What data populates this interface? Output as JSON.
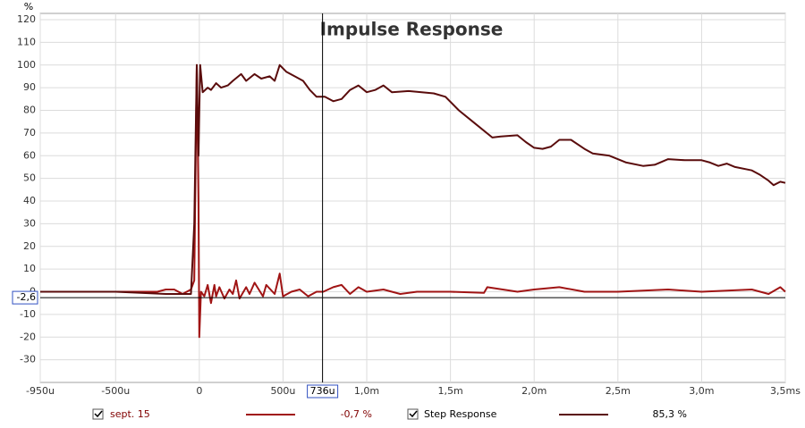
{
  "chart_data": {
    "type": "line",
    "title": "Impulse Response",
    "y_label": "%",
    "xlim": [
      -0.95,
      3.5
    ],
    "ylim": [
      -40,
      120
    ],
    "xticks": [
      {
        "value": -0.95,
        "label": "-950u"
      },
      {
        "value": -0.5,
        "label": "-500u"
      },
      0,
      {
        "value": 0.5,
        "label": "500u"
      },
      {
        "value": 1.0,
        "label": "1,0m"
      },
      {
        "value": 1.5,
        "label": "1,5m"
      },
      {
        "value": 2.0,
        "label": "2,0m"
      },
      {
        "value": 2.5,
        "label": "2,5m"
      },
      {
        "value": 3.0,
        "label": "3,0m"
      },
      {
        "value": 3.5,
        "label": "3,5ms"
      }
    ],
    "yticks": [
      -30,
      -20,
      -10,
      0,
      10,
      20,
      30,
      40,
      50,
      60,
      70,
      80,
      90,
      100,
      110,
      120
    ],
    "grid": true,
    "cursor": {
      "x": {
        "value": 0.736,
        "label": "736u"
      },
      "y": {
        "value": -2.6,
        "label": "-2,6"
      }
    },
    "series": [
      {
        "name": "sept. 15",
        "color": "#a01414",
        "readout": "-0,7 %",
        "x": [
          -0.95,
          -0.5,
          -0.25,
          -0.2,
          -0.15,
          -0.1,
          -0.05,
          -0.03,
          -0.015,
          -0.005,
          0.0,
          0.01,
          0.03,
          0.05,
          0.07,
          0.09,
          0.1,
          0.12,
          0.15,
          0.18,
          0.2,
          0.22,
          0.24,
          0.28,
          0.3,
          0.33,
          0.38,
          0.4,
          0.45,
          0.48,
          0.5,
          0.55,
          0.6,
          0.65,
          0.7,
          0.74,
          0.8,
          0.85,
          0.9,
          0.95,
          1.0,
          1.1,
          1.2,
          1.3,
          1.5,
          1.7,
          1.72,
          1.9,
          2.0,
          2.15,
          2.3,
          2.5,
          2.8,
          3.0,
          3.3,
          3.4,
          3.47,
          3.5
        ],
        "values": [
          0,
          0,
          0,
          1,
          1,
          -1,
          1,
          5,
          100,
          40,
          -20,
          0,
          -2,
          3,
          -5,
          3,
          -2,
          2,
          -3,
          1,
          -1,
          5,
          -3,
          2,
          -1,
          4,
          -2,
          3,
          -1,
          8,
          -2,
          0,
          1,
          -2,
          0,
          0,
          2,
          3,
          -1,
          2,
          0,
          1,
          -1,
          0,
          0,
          -0.5,
          2,
          0,
          1,
          2,
          0,
          0,
          1,
          0,
          1,
          -1,
          2,
          0
        ]
      },
      {
        "name": "Step Response",
        "color": "#5a0c0c",
        "readout": "85,3 %",
        "x": [
          -0.95,
          -0.5,
          -0.2,
          -0.05,
          -0.03,
          -0.015,
          -0.005,
          0.005,
          0.02,
          0.05,
          0.07,
          0.1,
          0.13,
          0.17,
          0.2,
          0.25,
          0.28,
          0.33,
          0.37,
          0.42,
          0.45,
          0.48,
          0.52,
          0.57,
          0.62,
          0.66,
          0.7,
          0.75,
          0.8,
          0.85,
          0.9,
          0.95,
          1.0,
          1.05,
          1.1,
          1.15,
          1.25,
          1.4,
          1.47,
          1.55,
          1.65,
          1.75,
          1.8,
          1.9,
          1.95,
          2.0,
          2.05,
          2.1,
          2.15,
          2.22,
          2.3,
          2.35,
          2.45,
          2.55,
          2.65,
          2.72,
          2.8,
          2.9,
          3.0,
          3.05,
          3.1,
          3.15,
          3.2,
          3.3,
          3.35,
          3.4,
          3.43,
          3.47,
          3.5
        ],
        "values": [
          0,
          0,
          -1,
          -1,
          30,
          100,
          60,
          100,
          88,
          90,
          89,
          92,
          90,
          91,
          93,
          96,
          93,
          96,
          94,
          95,
          93,
          100,
          97,
          95,
          93,
          89,
          86,
          86,
          84,
          85,
          89,
          91,
          88,
          89,
          91,
          88,
          88.5,
          87.5,
          86,
          80,
          74,
          68,
          68.5,
          69,
          66,
          63.5,
          63,
          64,
          67,
          67,
          63,
          61,
          60,
          57,
          55.5,
          56,
          58.5,
          58,
          58,
          57,
          55.5,
          56.5,
          55,
          53.5,
          51.5,
          49,
          47,
          48.5,
          48
        ]
      }
    ]
  }
}
